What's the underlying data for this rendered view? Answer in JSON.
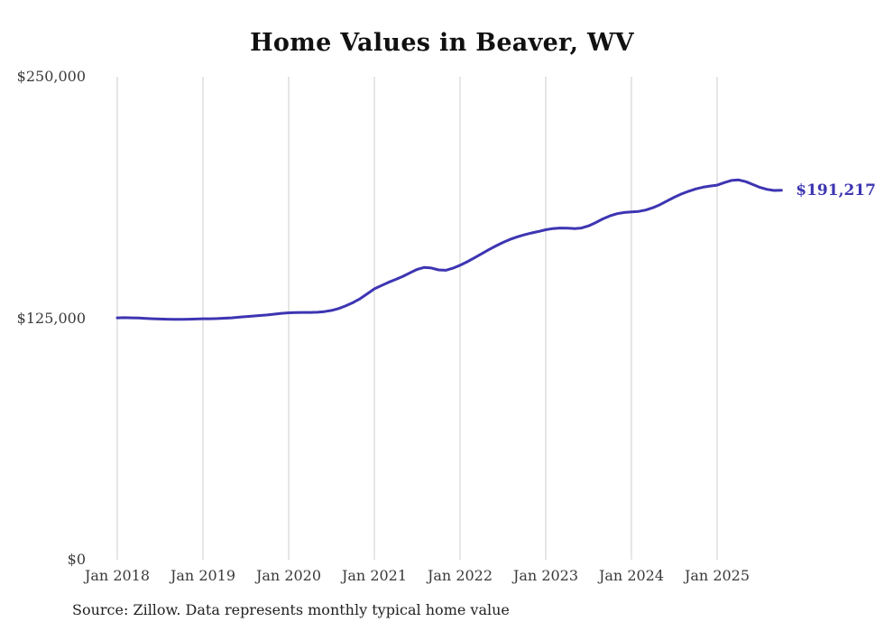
{
  "chart_data": {
    "type": "line",
    "title": "Home Values in Beaver, WV",
    "source_note": "Source: Zillow. Data represents monthly typical home value",
    "end_label": "$191,217",
    "end_value": 191217,
    "line_color": "#3d35b2",
    "grid_color": "#cccccc",
    "ylim": [
      0,
      250000
    ],
    "x_start": "Jan 2018",
    "x_frequency": "monthly",
    "legend": "none",
    "grid": "vertical-only",
    "y_ticks": [
      {
        "value": 250000,
        "label": "$250,000"
      },
      {
        "value": 125000,
        "label": "$125,000"
      },
      {
        "value": 0,
        "label": "$0"
      }
    ],
    "x_ticks": [
      {
        "year": 2018,
        "label": "Jan 2018"
      },
      {
        "year": 2019,
        "label": "Jan 2019"
      },
      {
        "year": 2020,
        "label": "Jan 2020"
      },
      {
        "year": 2021,
        "label": "Jan 2021"
      },
      {
        "year": 2022,
        "label": "Jan 2022"
      },
      {
        "year": 2023,
        "label": "Jan 2023"
      },
      {
        "year": 2024,
        "label": "Jan 2024"
      },
      {
        "year": 2025,
        "label": "Jan 2025"
      }
    ],
    "values": [
      125200,
      125300,
      125200,
      125100,
      124900,
      124700,
      124600,
      124500,
      124400,
      124400,
      124500,
      124600,
      124700,
      124700,
      124800,
      125000,
      125200,
      125500,
      125800,
      126100,
      126400,
      126700,
      127100,
      127500,
      127800,
      127900,
      128000,
      128000,
      128100,
      128400,
      129000,
      130000,
      131400,
      133100,
      135100,
      137600,
      140200,
      141900,
      143600,
      145100,
      146700,
      148500,
      150300,
      151300,
      151000,
      150000,
      149800,
      150900,
      152400,
      154200,
      156200,
      158300,
      160400,
      162400,
      164200,
      165800,
      167100,
      168200,
      169100,
      169900,
      170800,
      171400,
      171700,
      171600,
      171400,
      171700,
      172800,
      174500,
      176400,
      178000,
      179100,
      179700,
      180000,
      180300,
      181000,
      182200,
      183800,
      185700,
      187600,
      189300,
      190700,
      191900,
      192800,
      193400,
      193900,
      195200,
      196300,
      196600,
      195700,
      194200,
      192700,
      191700,
      191100,
      191217
    ]
  }
}
